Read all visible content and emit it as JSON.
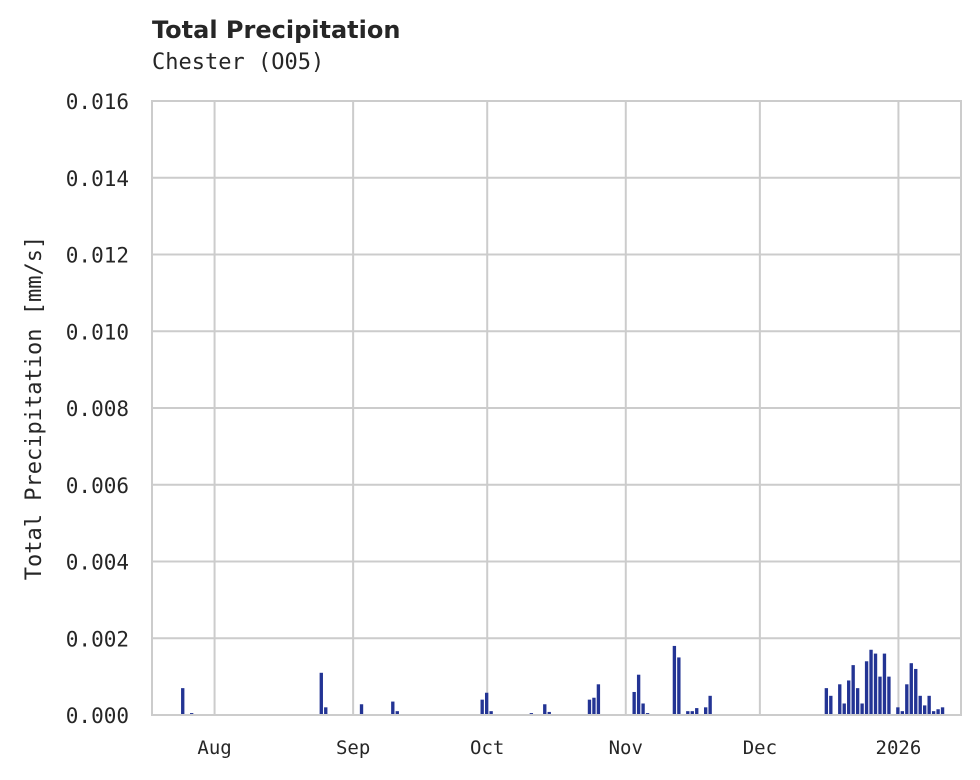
{
  "header": {
    "title": "Total Precipitation",
    "subtitle": "Chester (O05)"
  },
  "colors": {
    "bar": "#233494",
    "grid": "#cccccc",
    "text": "#262626"
  },
  "chart_data": {
    "type": "bar",
    "title": "Total Precipitation",
    "subtitle": "Chester (O05)",
    "xlabel": "",
    "ylabel": "Total Precipitation [mm/s]",
    "ylim": [
      0,
      0.016
    ],
    "yticks": [
      "0.000",
      "0.002",
      "0.004",
      "0.006",
      "0.008",
      "0.010",
      "0.012",
      "0.014",
      "0.016"
    ],
    "xticks": [
      "Aug",
      "Sep",
      "Oct",
      "Nov",
      "Dec",
      "2026"
    ],
    "x_range": [
      "2025-07-18",
      "2026-01-15"
    ],
    "grid": true,
    "legend": null,
    "series": [
      {
        "name": "Total Precipitation",
        "points": [
          {
            "x": "2025-07-25",
            "y": 0.0007
          },
          {
            "x": "2025-07-27",
            "y": 5e-05
          },
          {
            "x": "2025-08-25",
            "y": 0.0011
          },
          {
            "x": "2025-08-26",
            "y": 0.0002
          },
          {
            "x": "2025-09-03",
            "y": 0.00028
          },
          {
            "x": "2025-09-10",
            "y": 0.00035
          },
          {
            "x": "2025-09-11",
            "y": 0.0001
          },
          {
            "x": "2025-09-30",
            "y": 0.0004
          },
          {
            "x": "2025-10-01",
            "y": 0.00058
          },
          {
            "x": "2025-10-02",
            "y": 0.0001
          },
          {
            "x": "2025-10-11",
            "y": 5e-05
          },
          {
            "x": "2025-10-14",
            "y": 0.00028
          },
          {
            "x": "2025-10-15",
            "y": 8e-05
          },
          {
            "x": "2025-10-24",
            "y": 0.0004
          },
          {
            "x": "2025-10-25",
            "y": 0.00045
          },
          {
            "x": "2025-10-26",
            "y": 0.0008
          },
          {
            "x": "2025-11-03",
            "y": 0.0006
          },
          {
            "x": "2025-11-04",
            "y": 0.00105
          },
          {
            "x": "2025-11-05",
            "y": 0.0003
          },
          {
            "x": "2025-11-06",
            "y": 5e-05
          },
          {
            "x": "2025-11-12",
            "y": 0.0018
          },
          {
            "x": "2025-11-13",
            "y": 0.0015
          },
          {
            "x": "2025-11-15",
            "y": 0.0001
          },
          {
            "x": "2025-11-16",
            "y": 0.0001
          },
          {
            "x": "2025-11-17",
            "y": 0.00018
          },
          {
            "x": "2025-11-19",
            "y": 0.0002
          },
          {
            "x": "2025-11-20",
            "y": 0.0005
          },
          {
            "x": "2025-12-16",
            "y": 0.0007
          },
          {
            "x": "2025-12-17",
            "y": 0.0005
          },
          {
            "x": "2025-12-19",
            "y": 0.0008
          },
          {
            "x": "2025-12-20",
            "y": 0.0003
          },
          {
            "x": "2025-12-21",
            "y": 0.0009
          },
          {
            "x": "2025-12-22",
            "y": 0.0013
          },
          {
            "x": "2025-12-23",
            "y": 0.0007
          },
          {
            "x": "2025-12-24",
            "y": 0.0003
          },
          {
            "x": "2025-12-25",
            "y": 0.0014
          },
          {
            "x": "2025-12-26",
            "y": 0.0017
          },
          {
            "x": "2025-12-27",
            "y": 0.0016
          },
          {
            "x": "2025-12-28",
            "y": 0.001
          },
          {
            "x": "2025-12-29",
            "y": 0.0016
          },
          {
            "x": "2025-12-30",
            "y": 0.001
          },
          {
            "x": "2026-01-01",
            "y": 0.0002
          },
          {
            "x": "2026-01-02",
            "y": 0.0001
          },
          {
            "x": "2026-01-03",
            "y": 0.0008
          },
          {
            "x": "2026-01-04",
            "y": 0.00135
          },
          {
            "x": "2026-01-05",
            "y": 0.0012
          },
          {
            "x": "2026-01-06",
            "y": 0.0005
          },
          {
            "x": "2026-01-07",
            "y": 0.00025
          },
          {
            "x": "2026-01-08",
            "y": 0.0005
          },
          {
            "x": "2026-01-09",
            "y": 0.0001
          },
          {
            "x": "2026-01-10",
            "y": 0.00015
          },
          {
            "x": "2026-01-11",
            "y": 0.0002
          }
        ]
      }
    ]
  }
}
